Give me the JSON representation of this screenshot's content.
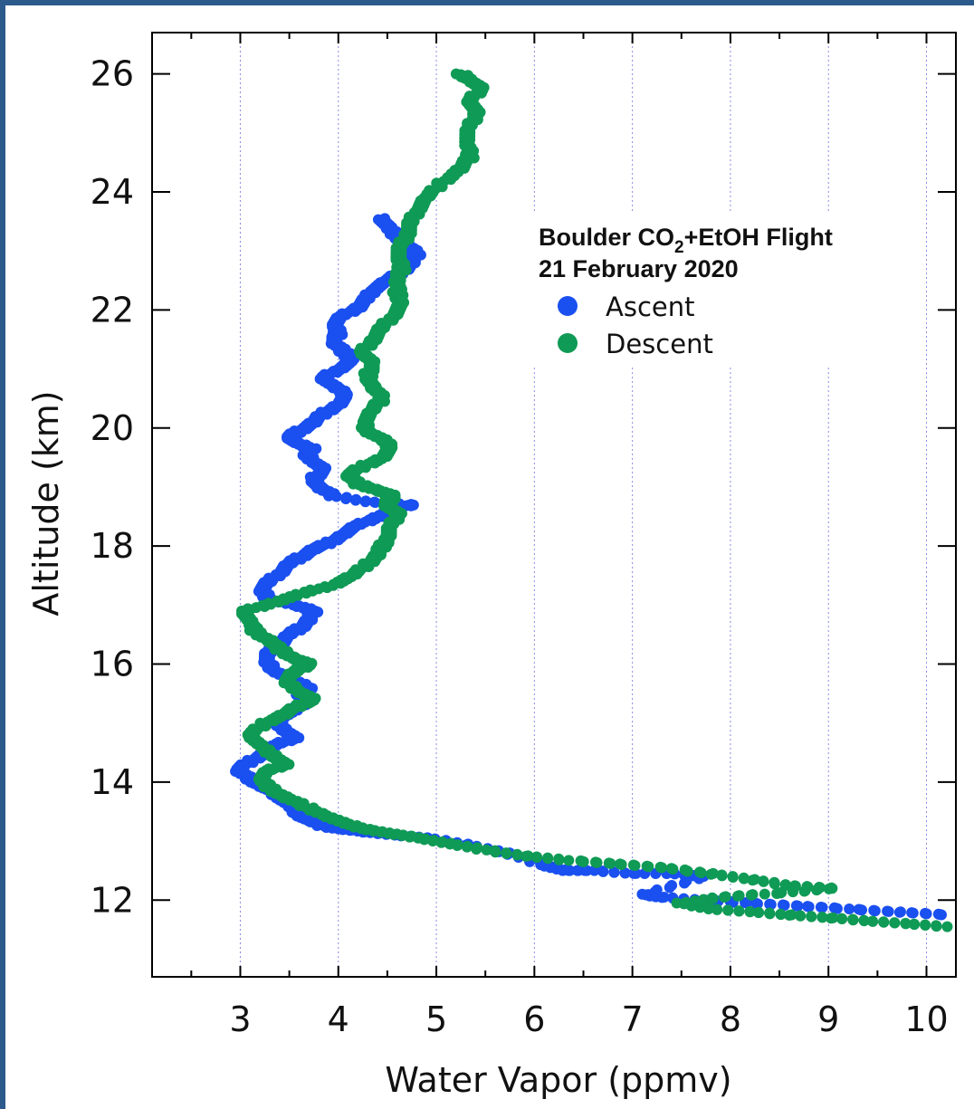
{
  "colors": {
    "background_border": "#2c5a8c",
    "ascent": "#1a4ff0",
    "descent": "#0f9a55",
    "grid": "#8a8ae6"
  },
  "chart_data": {
    "type": "scatter",
    "xlabel": "Water Vapor (ppmv)",
    "ylabel": "Altitude (km)",
    "xlim": [
      2.1,
      10.3
    ],
    "ylim": [
      10.7,
      26.7
    ],
    "x_ticks": [
      3,
      4,
      5,
      6,
      7,
      8,
      9,
      10
    ],
    "x_tick_labels": [
      "3",
      "4",
      "5",
      "6",
      "7",
      "8",
      "9",
      "10"
    ],
    "y_ticks": [
      12,
      14,
      16,
      18,
      20,
      22,
      24,
      26
    ],
    "y_tick_labels": [
      "12",
      "14",
      "16",
      "18",
      "20",
      "22",
      "24",
      "26"
    ],
    "vertical_grid": true,
    "horizontal_grid": false,
    "legend": {
      "title_line1_main": "Boulder CO",
      "title_line1_sub": "2",
      "title_line1_rest": "+EtOH Flight",
      "title_line2": "21 February 2020",
      "placement": "upper-right"
    },
    "series": [
      {
        "name": "Ascent",
        "color": "#1a4ff0",
        "points": [
          [
            10.2,
            11.75
          ],
          [
            9.7,
            11.8
          ],
          [
            9.2,
            11.85
          ],
          [
            8.7,
            11.9
          ],
          [
            8.2,
            11.95
          ],
          [
            7.7,
            12.0
          ],
          [
            7.3,
            12.05
          ],
          [
            7.1,
            12.1
          ],
          [
            7.75,
            12.4
          ],
          [
            7.4,
            12.45
          ],
          [
            7.0,
            12.45
          ],
          [
            6.6,
            12.5
          ],
          [
            6.3,
            12.5
          ],
          [
            6.1,
            12.6
          ],
          [
            5.7,
            12.8
          ],
          [
            5.3,
            12.95
          ],
          [
            4.9,
            13.05
          ],
          [
            4.6,
            13.1
          ],
          [
            4.3,
            13.15
          ],
          [
            4.05,
            13.2
          ],
          [
            3.85,
            13.25
          ],
          [
            3.7,
            13.35
          ],
          [
            3.6,
            13.45
          ],
          [
            3.5,
            13.6
          ],
          [
            3.4,
            13.75
          ],
          [
            3.3,
            13.85
          ],
          [
            3.2,
            13.95
          ],
          [
            3.1,
            14.05
          ],
          [
            2.97,
            14.2
          ],
          [
            3.1,
            14.35
          ],
          [
            3.25,
            14.5
          ],
          [
            3.4,
            14.65
          ],
          [
            3.55,
            14.75
          ],
          [
            3.45,
            14.9
          ],
          [
            3.35,
            15.05
          ],
          [
            3.55,
            15.2
          ],
          [
            3.65,
            15.35
          ],
          [
            3.6,
            15.5
          ],
          [
            3.7,
            15.6
          ],
          [
            3.5,
            15.75
          ],
          [
            3.35,
            15.9
          ],
          [
            3.25,
            16.05
          ],
          [
            3.3,
            16.2
          ],
          [
            3.4,
            16.35
          ],
          [
            3.5,
            16.5
          ],
          [
            3.6,
            16.6
          ],
          [
            3.7,
            16.75
          ],
          [
            3.75,
            16.9
          ],
          [
            3.55,
            17.0
          ],
          [
            3.3,
            17.1
          ],
          [
            3.2,
            17.25
          ],
          [
            3.3,
            17.4
          ],
          [
            3.4,
            17.55
          ],
          [
            3.5,
            17.7
          ],
          [
            3.6,
            17.8
          ],
          [
            3.75,
            17.95
          ],
          [
            3.9,
            18.05
          ],
          [
            4.05,
            18.2
          ],
          [
            4.2,
            18.35
          ],
          [
            4.4,
            18.5
          ],
          [
            4.6,
            18.65
          ],
          [
            4.75,
            18.7
          ],
          [
            4.3,
            18.75
          ],
          [
            3.95,
            18.85
          ],
          [
            3.8,
            19.0
          ],
          [
            3.75,
            19.15
          ],
          [
            3.85,
            19.3
          ],
          [
            3.75,
            19.45
          ],
          [
            3.65,
            19.55
          ],
          [
            3.75,
            19.65
          ],
          [
            3.55,
            19.75
          ],
          [
            3.5,
            19.85
          ],
          [
            3.6,
            19.95
          ],
          [
            3.75,
            20.1
          ],
          [
            3.85,
            20.25
          ],
          [
            4.0,
            20.4
          ],
          [
            4.1,
            20.55
          ],
          [
            3.95,
            20.7
          ],
          [
            3.85,
            20.85
          ],
          [
            4.0,
            21.0
          ],
          [
            4.15,
            21.15
          ],
          [
            4.05,
            21.3
          ],
          [
            3.95,
            21.45
          ],
          [
            4.0,
            21.6
          ],
          [
            3.95,
            21.75
          ],
          [
            4.05,
            21.9
          ],
          [
            4.2,
            22.05
          ],
          [
            4.3,
            22.2
          ],
          [
            4.35,
            22.35
          ],
          [
            4.5,
            22.5
          ],
          [
            4.65,
            22.65
          ],
          [
            4.75,
            22.8
          ],
          [
            4.8,
            22.95
          ],
          [
            4.7,
            23.1
          ],
          [
            4.6,
            23.25
          ],
          [
            4.5,
            23.4
          ],
          [
            4.45,
            23.55
          ]
        ]
      },
      {
        "name": "Descent",
        "color": "#0f9a55",
        "points": [
          [
            10.2,
            11.55
          ],
          [
            9.8,
            11.6
          ],
          [
            9.4,
            11.65
          ],
          [
            9.0,
            11.7
          ],
          [
            8.6,
            11.75
          ],
          [
            8.2,
            11.8
          ],
          [
            7.8,
            11.85
          ],
          [
            7.5,
            11.95
          ],
          [
            7.9,
            12.05
          ],
          [
            8.5,
            12.12
          ],
          [
            9.05,
            12.2
          ],
          [
            8.6,
            12.25
          ],
          [
            8.2,
            12.35
          ],
          [
            7.8,
            12.45
          ],
          [
            7.3,
            12.55
          ],
          [
            6.8,
            12.62
          ],
          [
            6.3,
            12.68
          ],
          [
            5.9,
            12.75
          ],
          [
            5.5,
            12.85
          ],
          [
            5.15,
            12.95
          ],
          [
            4.85,
            13.05
          ],
          [
            4.55,
            13.12
          ],
          [
            4.3,
            13.2
          ],
          [
            4.05,
            13.3
          ],
          [
            3.85,
            13.45
          ],
          [
            3.65,
            13.6
          ],
          [
            3.45,
            13.75
          ],
          [
            3.3,
            13.9
          ],
          [
            3.2,
            14.05
          ],
          [
            3.3,
            14.2
          ],
          [
            3.45,
            14.3
          ],
          [
            3.35,
            14.45
          ],
          [
            3.2,
            14.6
          ],
          [
            3.1,
            14.8
          ],
          [
            3.25,
            15.0
          ],
          [
            3.45,
            15.15
          ],
          [
            3.6,
            15.3
          ],
          [
            3.75,
            15.4
          ],
          [
            3.6,
            15.55
          ],
          [
            3.45,
            15.7
          ],
          [
            3.55,
            15.85
          ],
          [
            3.7,
            16.0
          ],
          [
            3.55,
            16.1
          ],
          [
            3.4,
            16.25
          ],
          [
            3.3,
            16.4
          ],
          [
            3.15,
            16.55
          ],
          [
            3.1,
            16.7
          ],
          [
            3.05,
            16.9
          ],
          [
            3.35,
            17.05
          ],
          [
            3.65,
            17.2
          ],
          [
            3.95,
            17.35
          ],
          [
            4.15,
            17.5
          ],
          [
            4.3,
            17.7
          ],
          [
            4.4,
            17.85
          ],
          [
            4.45,
            18.0
          ],
          [
            4.5,
            18.15
          ],
          [
            4.55,
            18.35
          ],
          [
            4.6,
            18.55
          ],
          [
            4.5,
            18.7
          ],
          [
            4.55,
            18.85
          ],
          [
            4.4,
            18.95
          ],
          [
            4.2,
            19.05
          ],
          [
            4.1,
            19.2
          ],
          [
            4.25,
            19.35
          ],
          [
            4.45,
            19.5
          ],
          [
            4.55,
            19.65
          ],
          [
            4.45,
            19.8
          ],
          [
            4.3,
            19.95
          ],
          [
            4.25,
            20.1
          ],
          [
            4.35,
            20.3
          ],
          [
            4.45,
            20.5
          ],
          [
            4.35,
            20.7
          ],
          [
            4.3,
            20.9
          ],
          [
            4.35,
            21.1
          ],
          [
            4.25,
            21.3
          ],
          [
            4.35,
            21.5
          ],
          [
            4.45,
            21.7
          ],
          [
            4.55,
            21.9
          ],
          [
            4.65,
            22.1
          ],
          [
            4.6,
            22.3
          ],
          [
            4.6,
            22.5
          ],
          [
            4.65,
            22.7
          ],
          [
            4.6,
            22.9
          ],
          [
            4.65,
            23.1
          ],
          [
            4.7,
            23.3
          ],
          [
            4.75,
            23.5
          ],
          [
            4.8,
            23.7
          ],
          [
            4.9,
            23.9
          ],
          [
            5.05,
            24.15
          ],
          [
            5.25,
            24.4
          ],
          [
            5.35,
            24.6
          ],
          [
            5.3,
            24.85
          ],
          [
            5.35,
            25.1
          ],
          [
            5.4,
            25.35
          ],
          [
            5.35,
            25.55
          ],
          [
            5.45,
            25.75
          ],
          [
            5.35,
            25.9
          ],
          [
            5.25,
            26.0
          ]
        ]
      }
    ]
  }
}
